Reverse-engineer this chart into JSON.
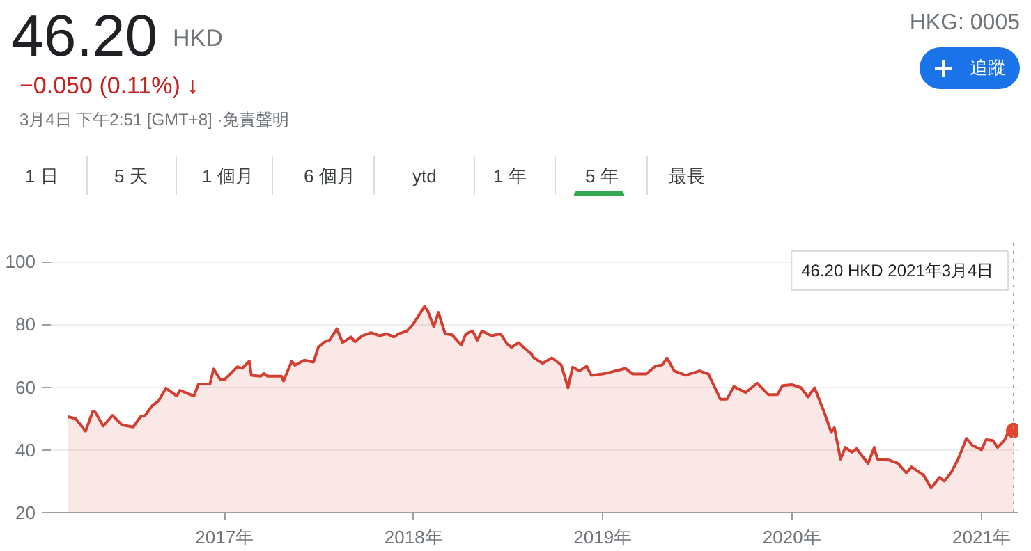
{
  "chart_data": {
    "type": "area",
    "title": "46.20",
    "subtitle": "HKD",
    "annotations": [
      "HKG: 0005",
      "−0.050 (0.11%) ↓",
      "3月4日 下午2:51 [GMT+8] ·免責聲明",
      "追蹤",
      "1 日",
      "5 天",
      "1 個月",
      "6 個月",
      "ytd",
      "1 年",
      "5 年",
      "最長"
    ],
    "xlim": [
      "2016-02-01",
      "2021-03-12"
    ],
    "xticks": [
      {
        "value": "2017-01-01",
        "label": "2017年"
      },
      {
        "value": "2018-01-01",
        "label": "2018年"
      },
      {
        "value": "2019-01-01",
        "label": "2019年"
      },
      {
        "value": "2020-01-01",
        "label": "2020年"
      },
      {
        "value": "2021-01-01",
        "label": "2021年"
      }
    ],
    "ylim": [
      20,
      106
    ],
    "yticks": [
      20,
      40,
      60,
      80,
      100
    ],
    "grid": "y",
    "ref_lines": [
      {
        "axis": "x",
        "value": "2021-03-04",
        "label": "46.20 HKD  2021年3月4日",
        "line_style": "dotted",
        "color": "#9e9e9e"
      }
    ],
    "series": [
      {
        "color": "#d23f31",
        "x": [
          "2016-03-05",
          "2016-03-20",
          "2016-04-08",
          "2016-04-22",
          "2016-04-27",
          "2016-05-12",
          "2016-05-30",
          "2016-06-17",
          "2016-07-09",
          "2016-07-23",
          "2016-08-01",
          "2016-08-14",
          "2016-08-27",
          "2016-09-10",
          "2016-10-01",
          "2016-10-07",
          "2016-11-03",
          "2016-11-12",
          "2016-12-04",
          "2016-12-11",
          "2016-12-24",
          "2017-01-01",
          "2017-01-11",
          "2017-01-26",
          "2017-02-04",
          "2017-02-18",
          "2017-02-22",
          "2017-03-12",
          "2017-03-18",
          "2017-03-25",
          "2017-04-21",
          "2017-04-25",
          "2017-05-11",
          "2017-05-17",
          "2017-06-04",
          "2017-06-22",
          "2017-07-01",
          "2017-07-14",
          "2017-07-23",
          "2017-08-06",
          "2017-08-17",
          "2017-09-02",
          "2017-09-10",
          "2017-09-24",
          "2017-10-11",
          "2017-10-27",
          "2017-11-11",
          "2017-11-24",
          "2017-12-03",
          "2017-12-19",
          "2017-12-30",
          "2018-01-22",
          "2018-01-28",
          "2018-02-09",
          "2018-02-18",
          "2018-03-03",
          "2018-03-16",
          "2018-04-03",
          "2018-04-12",
          "2018-04-25",
          "2018-05-04",
          "2018-05-13",
          "2018-05-31",
          "2018-06-18",
          "2018-07-01",
          "2018-07-09",
          "2018-07-23",
          "2018-08-01",
          "2018-08-17",
          "2018-08-19",
          "2018-09-07",
          "2018-09-25",
          "2018-10-13",
          "2018-10-26",
          "2018-11-04",
          "2018-11-17",
          "2018-12-01",
          "2018-12-10",
          "2019-01-01",
          "2019-01-19",
          "2019-02-14",
          "2019-02-28",
          "2019-03-26",
          "2019-04-13",
          "2019-04-26",
          "2019-05-05",
          "2019-05-19",
          "2019-06-10",
          "2019-07-07",
          "2019-07-24",
          "2019-08-16",
          "2019-08-29",
          "2019-09-11",
          "2019-10-04",
          "2019-10-26",
          "2019-11-17",
          "2019-12-04",
          "2019-12-14",
          "2020-01-01",
          "2020-01-19",
          "2020-02-01",
          "2020-02-14",
          "2020-03-04",
          "2020-03-17",
          "2020-03-23",
          "2020-04-04",
          "2020-04-13",
          "2020-04-26",
          "2020-05-05",
          "2020-05-27",
          "2020-06-08",
          "2020-06-14",
          "2020-07-06",
          "2020-07-24",
          "2020-08-09",
          "2020-08-19",
          "2020-09-11",
          "2020-09-26",
          "2020-10-12",
          "2020-10-21",
          "2020-11-03",
          "2020-11-17",
          "2020-12-03",
          "2020-12-14",
          "2021-01-01",
          "2021-01-10",
          "2021-01-23",
          "2021-02-01",
          "2021-02-14",
          "2021-02-23",
          "2021-03-04"
        ],
        "values": [
          50.6,
          50,
          46,
          52.3,
          52,
          47.6,
          51,
          48,
          47.3,
          50.6,
          51,
          54,
          55.7,
          59.7,
          57.2,
          59,
          57.2,
          61,
          61,
          65.8,
          62.4,
          62.4,
          64,
          66.5,
          66,
          68.3,
          63.8,
          63.5,
          64.4,
          63.5,
          63.5,
          62,
          68.3,
          67,
          68.6,
          68,
          72.7,
          74.5,
          75,
          78.6,
          74.2,
          76,
          74.5,
          76.4,
          77.4,
          76.4,
          77,
          76,
          77,
          77.9,
          79.8,
          85.7,
          84.5,
          79.3,
          83.8,
          77,
          76.7,
          73.4,
          77,
          77.9,
          75,
          77.9,
          76.4,
          77,
          73.7,
          72.7,
          74.2,
          72.7,
          70.5,
          69.6,
          67.6,
          69.3,
          67.1,
          59.8,
          66.4,
          65.2,
          66.7,
          63.8,
          64.2,
          64.9,
          66,
          64.2,
          64.2,
          66.7,
          67.1,
          69.3,
          65.2,
          63.8,
          65.2,
          64.2,
          56.2,
          56.2,
          60.2,
          58.3,
          61.3,
          57.6,
          57.6,
          60.5,
          60.8,
          59.8,
          56.9,
          59.8,
          51.8,
          45.6,
          47.1,
          37.1,
          40.8,
          39.3,
          40.4,
          35.7,
          40.8,
          37.1,
          36.8,
          35.7,
          32.7,
          34.6,
          32,
          27.9,
          31.3,
          30.1,
          32.7,
          37.1,
          43.7,
          41.5,
          40.1,
          43.3,
          43,
          40.8,
          43,
          46.2,
          46.2
        ]
      },
      {
        "type": "scatter",
        "color": "#e0442f",
        "x": [
          "2021-03-04"
        ],
        "values": [
          46.2
        ]
      }
    ]
  }
}
